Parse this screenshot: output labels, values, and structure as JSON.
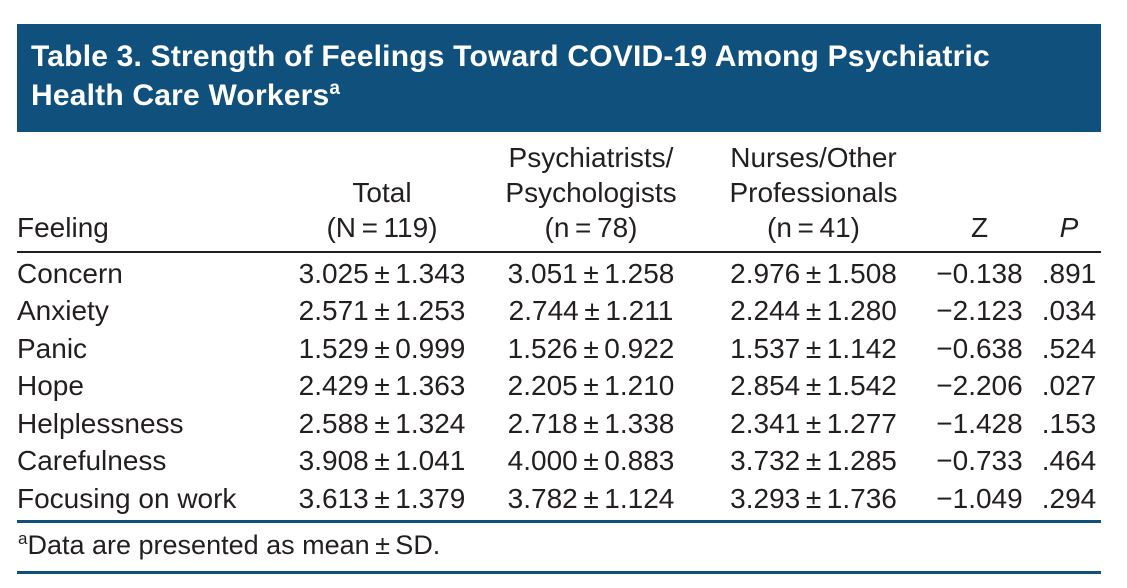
{
  "page": {
    "title_line1": "Table 3. Strength of Feelings Toward COVID-19 Among Psychiatric",
    "title_line2": "Health Care Workers",
    "title_superscript": "a"
  },
  "colors": {
    "title_bar_bg": "#10507d",
    "title_text": "#ffffff",
    "body_text": "#231f20",
    "header_rule": "#231f20",
    "footnote_rules": "#10507d"
  },
  "table": {
    "header": {
      "feeling": "Feeling",
      "total_lines": [
        "Total",
        "(N = 119)"
      ],
      "psych_lines": [
        "Psychiatrists/",
        "Psychologists",
        "(n = 78)"
      ],
      "nurses_lines": [
        "Nurses/Other",
        "Professionals",
        "(n = 41)"
      ],
      "z": "Z",
      "p": "P"
    },
    "rows": [
      {
        "feeling": "Concern",
        "total": "3.025 ± 1.343",
        "psych": "3.051 ± 1.258",
        "nurses": "2.976 ± 1.508",
        "z": "−0.138",
        "p": ".891"
      },
      {
        "feeling": "Anxiety",
        "total": "2.571 ± 1.253",
        "psych": "2.744 ± 1.211",
        "nurses": "2.244 ± 1.280",
        "z": "−2.123",
        "p": ".034"
      },
      {
        "feeling": "Panic",
        "total": "1.529 ± 0.999",
        "psych": "1.526 ± 0.922",
        "nurses": "1.537 ± 1.142",
        "z": "−0.638",
        "p": ".524"
      },
      {
        "feeling": "Hope",
        "total": "2.429 ± 1.363",
        "psych": "2.205 ± 1.210",
        "nurses": "2.854 ± 1.542",
        "z": "−2.206",
        "p": ".027"
      },
      {
        "feeling": "Helplessness",
        "total": "2.588 ± 1.324",
        "psych": "2.718 ± 1.338",
        "nurses": "2.341 ± 1.277",
        "z": "−1.428",
        "p": ".153"
      },
      {
        "feeling": "Carefulness",
        "total": "3.908 ± 1.041",
        "psych": "4.000 ± 0.883",
        "nurses": "3.732 ± 1.285",
        "z": "−0.733",
        "p": ".464"
      },
      {
        "feeling": "Focusing on work",
        "total": "3.613 ± 1.379",
        "psych": "3.782 ± 1.124",
        "nurses": "3.293 ± 1.736",
        "z": "−1.049",
        "p": ".294"
      }
    ]
  },
  "footnote": {
    "marker": "a",
    "text": "Data are presented as mean ± SD."
  }
}
